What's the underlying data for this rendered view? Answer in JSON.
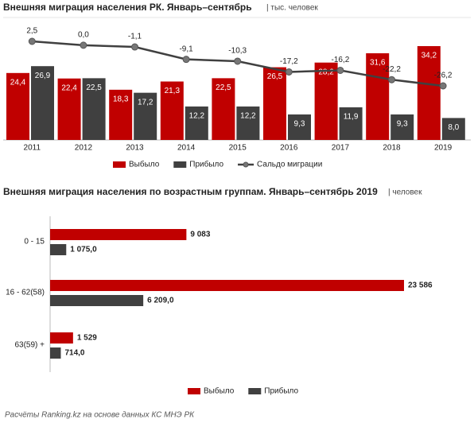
{
  "chart_data": [
    {
      "type": "bar",
      "title": "Внешняя миграция населения РК. Январь–сентябрь",
      "subtitle": "| тыс. человек",
      "categories": [
        "2011",
        "2012",
        "2013",
        "2014",
        "2015",
        "2016",
        "2017",
        "2018",
        "2019"
      ],
      "series": [
        {
          "name": "Выбыло",
          "color": "#c00000",
          "values": [
            24.4,
            22.4,
            18.3,
            21.3,
            22.5,
            26.5,
            28.2,
            31.6,
            34.2
          ],
          "value_labels": [
            "24,4",
            "22,4",
            "18,3",
            "21,3",
            "22,5",
            "26,5",
            "28,2",
            "31,6",
            "34,2"
          ]
        },
        {
          "name": "Прибыло",
          "color": "#404040",
          "values": [
            26.9,
            22.5,
            17.2,
            12.2,
            12.2,
            9.3,
            11.9,
            9.3,
            8.0
          ],
          "value_labels": [
            "26,9",
            "22,5",
            "17,2",
            "12,2",
            "12,2",
            "9,3",
            "11,9",
            "9,3",
            "8,0"
          ]
        },
        {
          "name": "Сальдо миграции",
          "color": "#404040",
          "axis": "y2",
          "type": "line",
          "values": [
            2.5,
            0.0,
            -1.1,
            -9.1,
            -10.3,
            -17.2,
            -16.2,
            -22.2,
            -26.2
          ],
          "value_labels": [
            "2,5",
            "0,0",
            "-1,1",
            "-9,1",
            "-10,3",
            "-17,2",
            "-16,2",
            "-22,2",
            "-26,2"
          ]
        }
      ]
    },
    {
      "type": "hbar",
      "title": "Внешняя миграция населения по возрастным группам. Январь–сентябрь 2019",
      "subtitle": "| человек",
      "categories": [
        "0 - 15",
        "16 - 62(58)",
        "63(59) +"
      ],
      "series": [
        {
          "name": "Выбыло",
          "color": "#c00000",
          "values": [
            9083,
            23586,
            1529
          ],
          "value_labels": [
            "9 083",
            "23 586",
            "1 529"
          ]
        },
        {
          "name": "Прибыло",
          "color": "#404040",
          "values": [
            1075,
            6209,
            714
          ],
          "value_labels": [
            "1 075,0",
            "6 209,0",
            "714,0"
          ]
        }
      ]
    }
  ],
  "footer": "Расчёты Ranking.kz на основе данных КС МНЭ РК"
}
